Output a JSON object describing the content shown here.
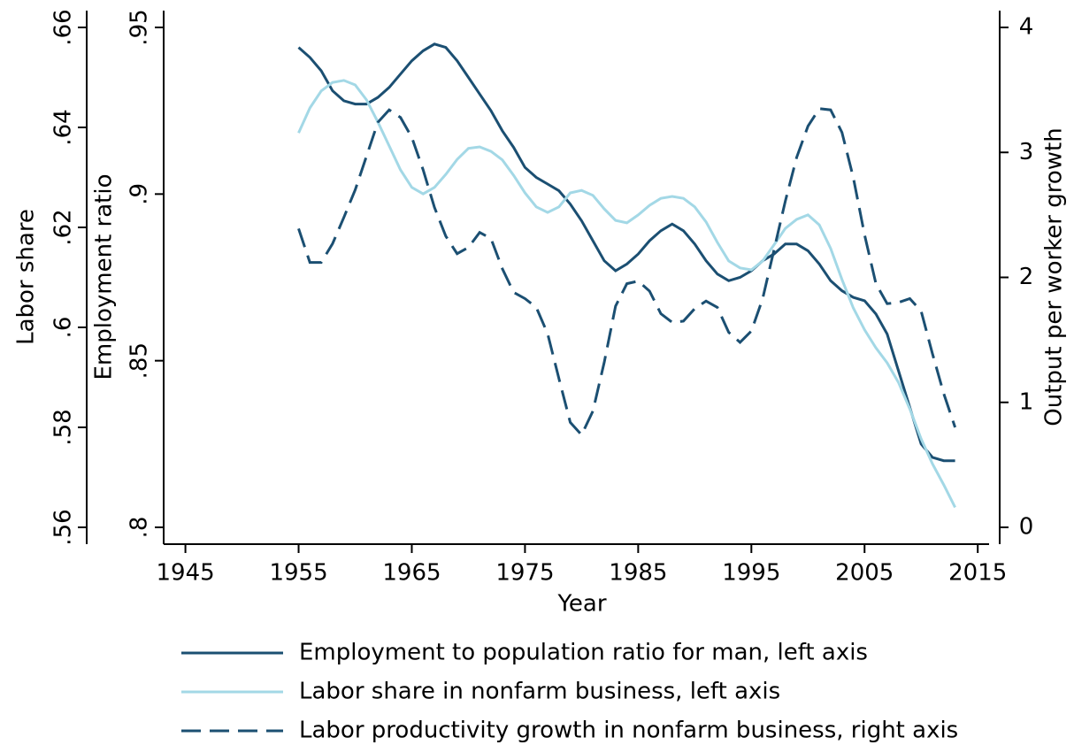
{
  "chart_data": {
    "type": "line",
    "xlabel": "Year",
    "ylabel": "Labor share",
    "y3label": "Employment ratio",
    "y2label": "Output per worker growth",
    "x": [
      1955,
      1956,
      1957,
      1958,
      1959,
      1960,
      1961,
      1962,
      1963,
      1964,
      1965,
      1966,
      1967,
      1968,
      1969,
      1970,
      1971,
      1972,
      1973,
      1974,
      1975,
      1976,
      1977,
      1978,
      1979,
      1980,
      1981,
      1982,
      1983,
      1984,
      1985,
      1986,
      1987,
      1988,
      1989,
      1990,
      1991,
      1992,
      1993,
      1994,
      1995,
      1996,
      1997,
      1998,
      1999,
      2000,
      2001,
      2002,
      2003,
      2004,
      2005,
      2006,
      2007,
      2008,
      2009,
      2010,
      2011,
      2012,
      2013
    ],
    "xlim": [
      1943,
      2016
    ],
    "xticks": [
      1945,
      1955,
      1965,
      1975,
      1985,
      1995,
      2005,
      2015
    ],
    "ylim": [
      0.56,
      0.66
    ],
    "yticks": [
      {
        "value": 0.56,
        "label": ".56"
      },
      {
        "value": 0.58,
        "label": ".58"
      },
      {
        "value": 0.6,
        "label": ".6"
      },
      {
        "value": 0.62,
        "label": ".62"
      },
      {
        "value": 0.64,
        "label": ".64"
      },
      {
        "value": 0.66,
        "label": ".66"
      }
    ],
    "y3lim": [
      0.8,
      0.95
    ],
    "y3ticks": [
      {
        "value": 0.8,
        "label": ".8"
      },
      {
        "value": 0.85,
        "label": ".85"
      },
      {
        "value": 0.9,
        "label": ".9"
      },
      {
        "value": 0.95,
        "label": ".95"
      }
    ],
    "y2lim": [
      0,
      4
    ],
    "y2ticks": [
      0,
      1,
      2,
      3,
      4
    ],
    "legend": "bottom",
    "series": [
      {
        "name": "Employment to population ratio for man, left axis",
        "color": "#1b4f72",
        "axis": "y3",
        "style": "solid",
        "values": [
          0.944,
          0.941,
          0.937,
          0.931,
          0.928,
          0.927,
          0.927,
          0.929,
          0.932,
          0.936,
          0.94,
          0.943,
          0.945,
          0.944,
          0.94,
          0.935,
          0.93,
          0.925,
          0.919,
          0.914,
          0.908,
          0.905,
          0.903,
          0.901,
          0.897,
          0.892,
          0.886,
          0.88,
          0.877,
          0.879,
          0.882,
          0.886,
          0.889,
          0.891,
          0.889,
          0.885,
          0.88,
          0.876,
          0.874,
          0.875,
          0.877,
          0.88,
          0.882,
          0.885,
          0.885,
          0.883,
          0.879,
          0.874,
          0.871,
          0.869,
          0.868,
          0.864,
          0.858,
          0.847,
          0.836,
          0.825,
          0.821,
          0.82,
          0.82
        ]
      },
      {
        "name": "Labor share in nonfarm business, left axis",
        "color": "#a3d8e6",
        "axis": "y",
        "style": "solid",
        "values": [
          0.6389,
          0.6439,
          0.6473,
          0.649,
          0.6494,
          0.6485,
          0.6455,
          0.6411,
          0.6363,
          0.6315,
          0.628,
          0.6267,
          0.628,
          0.6306,
          0.6336,
          0.6358,
          0.6361,
          0.6352,
          0.6335,
          0.6304,
          0.6269,
          0.6241,
          0.623,
          0.6241,
          0.6269,
          0.6274,
          0.6264,
          0.6237,
          0.6214,
          0.6209,
          0.6225,
          0.6244,
          0.6258,
          0.6262,
          0.6258,
          0.6241,
          0.6211,
          0.617,
          0.6133,
          0.6119,
          0.6115,
          0.6133,
          0.6165,
          0.6198,
          0.6216,
          0.6225,
          0.6205,
          0.6158,
          0.6096,
          0.6039,
          0.5995,
          0.5959,
          0.5929,
          0.589,
          0.5837,
          0.5777,
          0.5727,
          0.5685,
          0.564
        ]
      },
      {
        "name": "Labor productivity growth in nonfarm business, right axis",
        "color": "#1b4f72",
        "axis": "y2",
        "style": "dashed",
        "values": [
          2.39,
          2.12,
          2.12,
          2.27,
          2.48,
          2.7,
          2.97,
          3.24,
          3.34,
          3.28,
          3.12,
          2.86,
          2.56,
          2.33,
          2.19,
          2.24,
          2.36,
          2.31,
          2.07,
          1.88,
          1.83,
          1.76,
          1.55,
          1.19,
          0.84,
          0.74,
          0.93,
          1.32,
          1.77,
          1.95,
          1.97,
          1.89,
          1.71,
          1.64,
          1.65,
          1.75,
          1.81,
          1.76,
          1.56,
          1.48,
          1.57,
          1.83,
          2.22,
          2.61,
          2.96,
          3.21,
          3.35,
          3.34,
          3.16,
          2.8,
          2.34,
          1.95,
          1.79,
          1.8,
          1.83,
          1.73,
          1.39,
          1.07,
          0.8
        ]
      }
    ]
  }
}
